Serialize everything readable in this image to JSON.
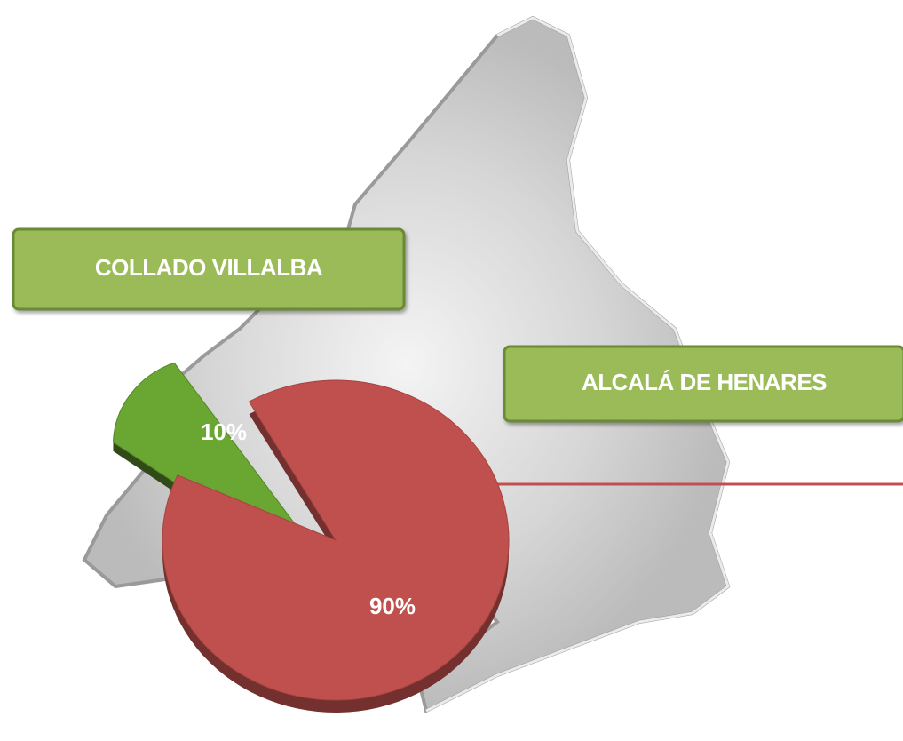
{
  "chart_data": {
    "type": "pie",
    "categories": [
      "COLLADO VILLALBA",
      "ALCALÁ DE HENARES"
    ],
    "values": [
      10,
      90
    ],
    "value_labels": [
      "10%",
      "90%"
    ],
    "colors": [
      "#6aa732",
      "#c0504d"
    ]
  }
}
